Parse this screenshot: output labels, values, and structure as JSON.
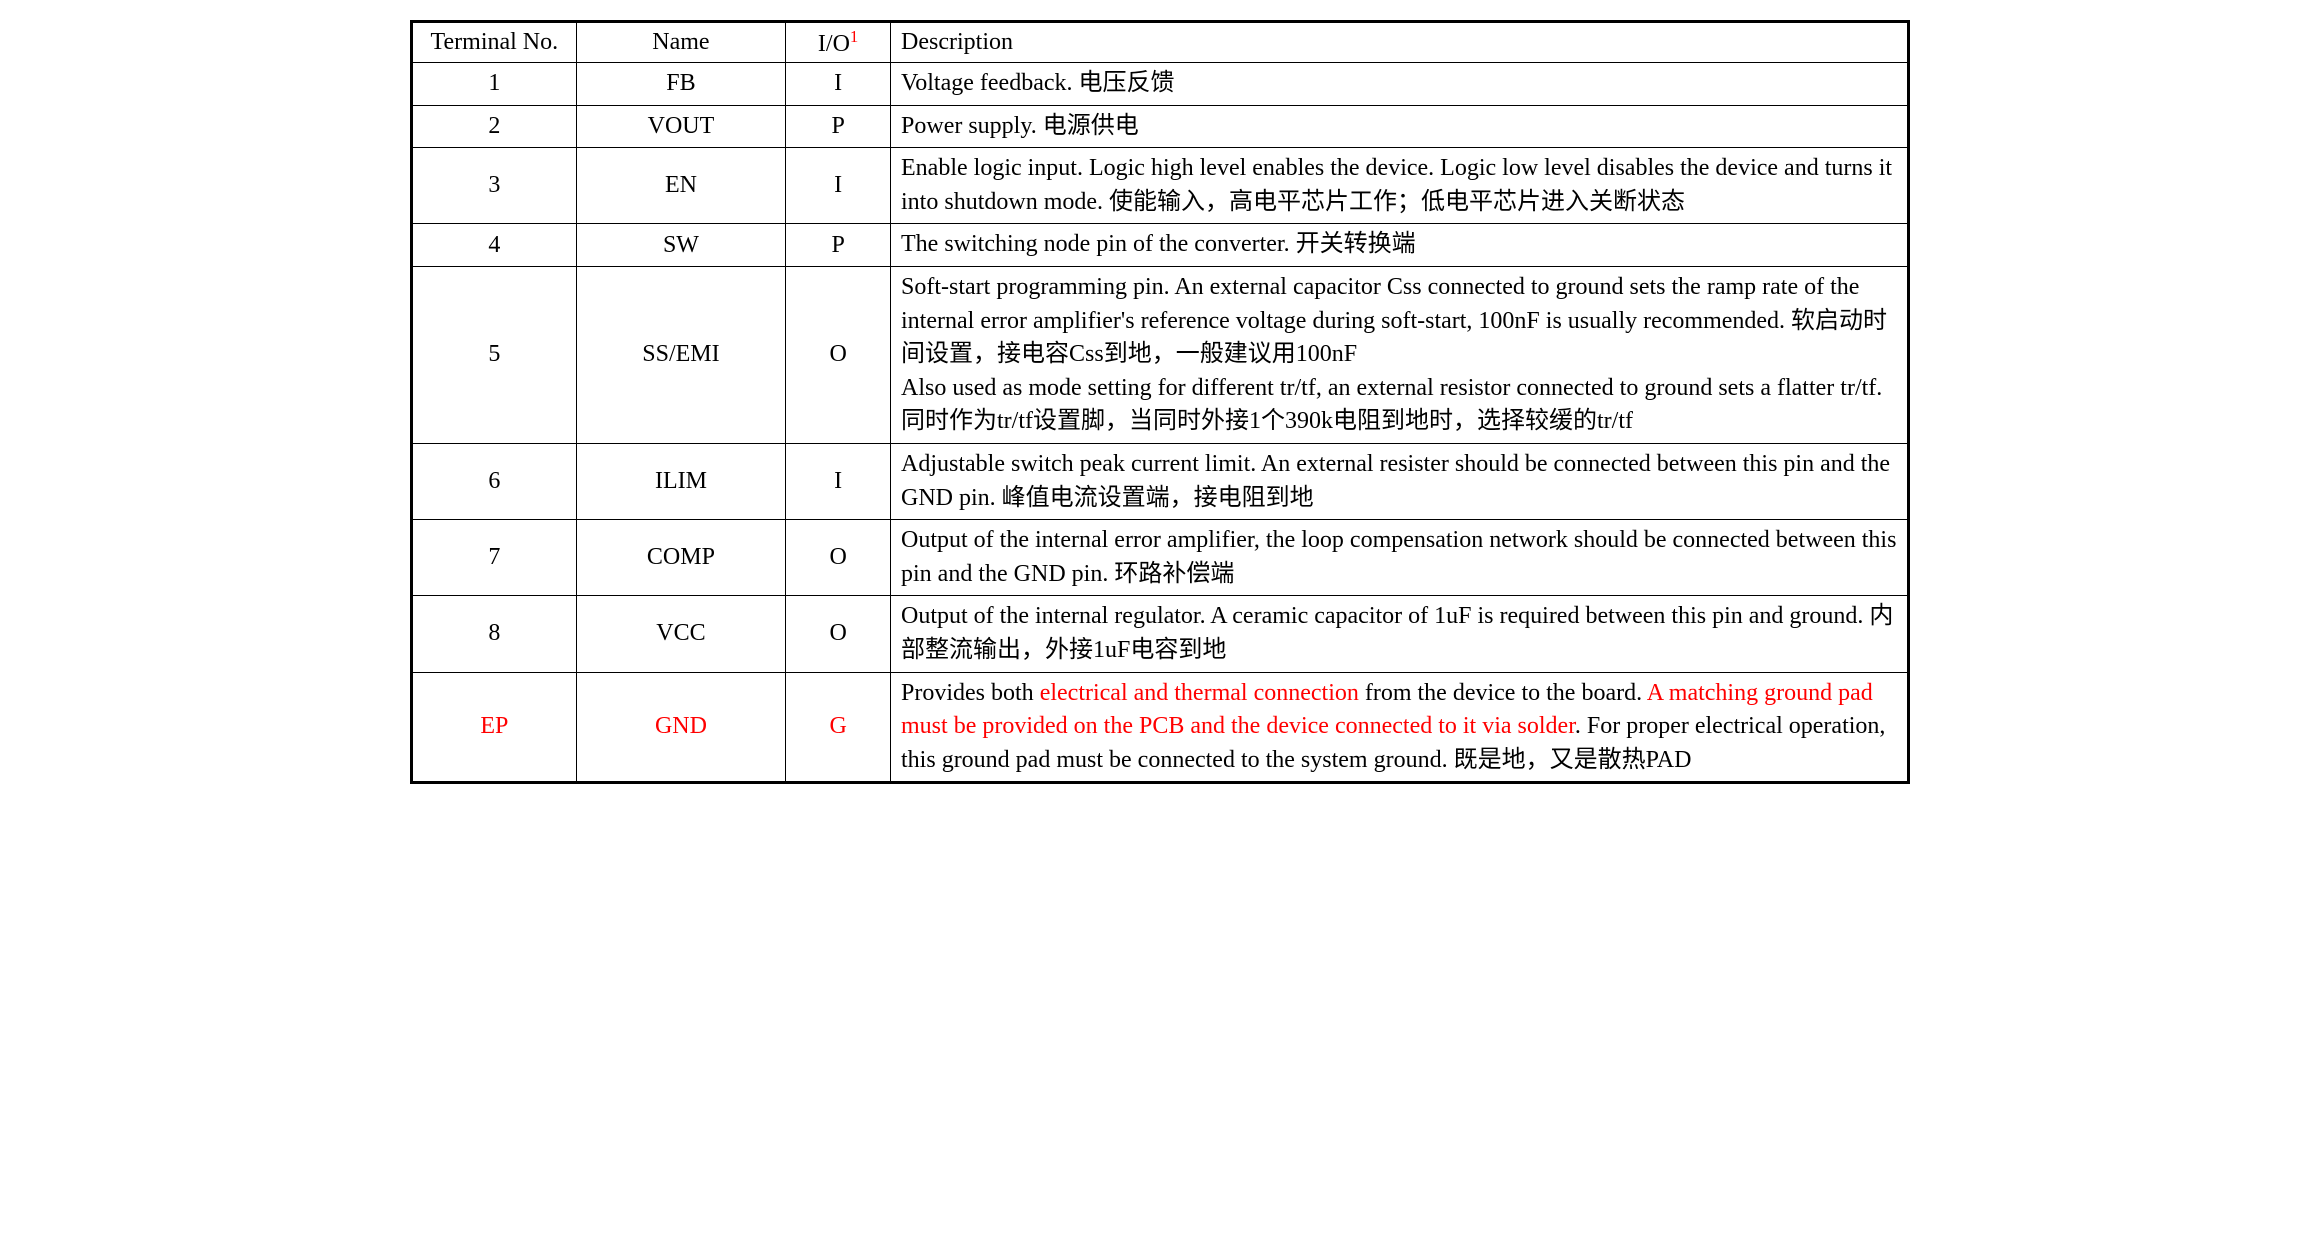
{
  "table": {
    "headers": {
      "terminal": "Terminal No.",
      "name": "Name",
      "io": "I/O",
      "io_superscript": "1",
      "description": "Description"
    },
    "colors": {
      "text_default": "#000000",
      "text_red": "#ff0000",
      "border": "#000000",
      "background": "#ffffff"
    },
    "font": {
      "family": "Times New Roman",
      "size_pt": 18
    },
    "column_widths_pct": [
      11,
      14,
      7,
      68
    ],
    "rows": [
      {
        "terminal": "1",
        "name": "FB",
        "io": "I",
        "description_segments": [
          {
            "text": "Voltage feedback.  电压反馈",
            "red": false
          }
        ]
      },
      {
        "terminal": "2",
        "name": "VOUT",
        "io": "P",
        "description_segments": [
          {
            "text": "Power supply.  电源供电",
            "red": false
          }
        ]
      },
      {
        "terminal": "3",
        "name": "EN",
        "io": "I",
        "description_segments": [
          {
            "text": "Enable logic input. Logic high level enables the device. Logic low level disables the device and turns it into shutdown mode.  使能输入，高电平芯片工作；低电平芯片进入关断状态",
            "red": false
          }
        ]
      },
      {
        "terminal": "4",
        "name": "SW",
        "io": "P",
        "description_segments": [
          {
            "text": "The switching node pin of the converter.  开关转换端",
            "red": false
          }
        ]
      },
      {
        "terminal": "5",
        "name": "SS/EMI",
        "io": "O",
        "description_segments": [
          {
            "text": "Soft-start programming pin. An external capacitor Css connected to ground sets the ramp rate of the internal error amplifier's reference voltage during soft-start, 100nF is usually recommended.  软启动时间设置，接电容Css到地，一般建议用100nF\nAlso used as mode setting for different tr/tf, an external resistor connected to ground sets a flatter tr/tf.  同时作为tr/tf设置脚，当同时外接1个390k电阻到地时，选择较缓的tr/tf",
            "red": false
          }
        ]
      },
      {
        "terminal": "6",
        "name": "ILIM",
        "io": "I",
        "description_segments": [
          {
            "text": "Adjustable switch peak current limit. An external resister should be connected between this pin and the GND pin.  峰值电流设置端，接电阻到地",
            "red": false
          }
        ]
      },
      {
        "terminal": "7",
        "name": "COMP",
        "io": "O",
        "description_segments": [
          {
            "text": "Output of the internal error amplifier, the loop compensation network should be connected between this pin and the GND pin.  环路补偿端",
            "red": false
          }
        ]
      },
      {
        "terminal": "8",
        "name": "VCC",
        "io": "O",
        "description_segments": [
          {
            "text": "Output of the internal regulator. A ceramic capacitor of 1uF is required between this pin and ground.  内部整流输出，外接1uF电容到地",
            "red": false
          }
        ]
      },
      {
        "terminal": "EP",
        "terminal_red": true,
        "name": "GND",
        "name_red": true,
        "io": "G",
        "io_red": true,
        "description_segments": [
          {
            "text": "Provides both ",
            "red": false
          },
          {
            "text": "electrical and thermal connection",
            "red": true
          },
          {
            "text": " from the device to the board. ",
            "red": false
          },
          {
            "text": "A matching ground pad must be provided on the PCB and the device connected to it via solder",
            "red": true
          },
          {
            "text": ". For proper electrical operation, this ground pad must be connected to the system ground.  既是地，又是散热PAD",
            "red": false
          }
        ]
      }
    ]
  }
}
